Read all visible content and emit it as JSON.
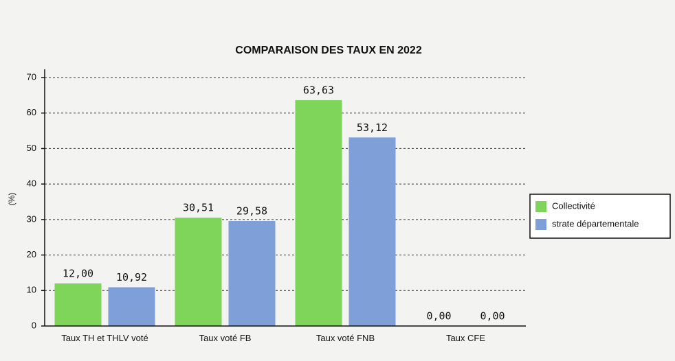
{
  "chart_data": {
    "type": "bar",
    "title": "COMPARAISON DES TAUX EN 2022",
    "y_label": "(%)",
    "categories": [
      "Taux TH et THLV voté",
      "Taux voté FB",
      "Taux voté FNB",
      "Taux CFE"
    ],
    "series": [
      {
        "name": "Collectivité",
        "color": "#7fd45a",
        "values": [
          12.0,
          30.51,
          63.63,
          0.0
        ],
        "value_labels": [
          "12,00",
          "30,51",
          "63,63",
          "0,00"
        ]
      },
      {
        "name": "strate départementale",
        "color": "#7f9fd9",
        "values": [
          10.92,
          29.58,
          53.12,
          0.0
        ],
        "value_labels": [
          "10,92",
          "29,58",
          "53,12",
          "0,00"
        ]
      }
    ],
    "ylim": [
      0,
      70
    ],
    "yticks": [
      0,
      10,
      20,
      30,
      40,
      50,
      60,
      70
    ],
    "grid": true,
    "legend": "right"
  }
}
